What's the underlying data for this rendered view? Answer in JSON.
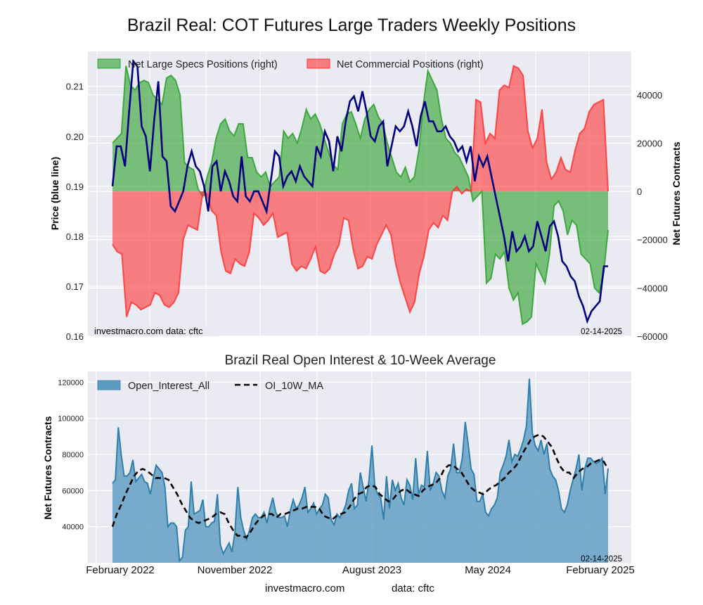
{
  "title": "Brazil Real: COT Futures Large Traders Weekly Positions",
  "subtitle": "Brazil Real Open Interest & 10-Week Average",
  "footer": {
    "site": "investmacro.com",
    "source": "data: cftc"
  },
  "chart_data": [
    {
      "type": "area",
      "name": "positions",
      "title": "Brazil Real: COT Futures Large Traders Weekly Positions",
      "ylabel_left": "Price (blue line)",
      "ylabel_right": "Net Futures Contracts",
      "ylim_left": [
        0.16,
        0.217
      ],
      "ylim_right": [
        -60000,
        58000
      ],
      "yticks_left": [
        "0.21",
        "0.20",
        "0.19",
        "0.18",
        "0.17",
        "0.16"
      ],
      "yticks_right": [
        "40000",
        "20000",
        "0",
        "−20000",
        "−40000",
        "−60000"
      ],
      "grid": true,
      "legend": {
        "position": "top-left",
        "entries": [
          {
            "label": "Net Large Specs Positions (right)",
            "color": "#2ca02c"
          },
          {
            "label": "Net Commercial Positions (right)",
            "color": "#ff3333"
          }
        ]
      },
      "annotation_left": "investmacro.com    data: cftc",
      "annotation_right": "02-14-2025",
      "x_start": "2022-01-11",
      "x_end": "2025-02-14",
      "series": [
        {
          "name": "Net Large Specs Positions",
          "axis": "right",
          "color": "#2ca02c",
          "values": [
            20000,
            22000,
            24000,
            52000,
            44000,
            42000,
            45000,
            46000,
            45000,
            40000,
            38000,
            36000,
            47000,
            48000,
            46000,
            40000,
            12000,
            10000,
            9000,
            1000,
            -2000,
            6000,
            12000,
            22000,
            28000,
            30000,
            25000,
            23000,
            28000,
            28000,
            14000,
            14000,
            8000,
            6000,
            8000,
            2000,
            4000,
            6000,
            25000,
            22000,
            24000,
            20000,
            26000,
            34000,
            30000,
            32000,
            28000,
            22000,
            16000,
            11000,
            9000,
            28000,
            32000,
            33000,
            28000,
            22000,
            30000,
            34000,
            36000,
            31000,
            28000,
            20000,
            14000,
            8000,
            6000,
            10000,
            4000,
            6000,
            17000,
            36000,
            50000,
            46000,
            42000,
            30000,
            22000,
            20000,
            16000,
            14000,
            10000,
            6000,
            -4000,
            -2000,
            0,
            -38000,
            -36000,
            -26000,
            -28000,
            -25000,
            -40000,
            -45000,
            -42000,
            -55000,
            -54000,
            -52000,
            -30000,
            -34000,
            -38000,
            -26000,
            -6000,
            -4000,
            -8000,
            -18000,
            -12000,
            -14000,
            -26000,
            -28000,
            -30000,
            -40000,
            -42000,
            -34000,
            -16000
          ]
        },
        {
          "name": "Net Commercial Positions",
          "axis": "right",
          "color": "#ff3333",
          "values": [
            -22000,
            -25000,
            -26000,
            -52000,
            -46000,
            -47000,
            -49000,
            -48000,
            -47000,
            -42000,
            -43000,
            -47000,
            -48000,
            -46000,
            -42000,
            -20000,
            -14000,
            -15000,
            -16000,
            -2000,
            -1000,
            -8000,
            -10000,
            -25000,
            -33000,
            -34000,
            -28000,
            -30000,
            -31000,
            -25000,
            -9000,
            -11000,
            -14000,
            -12000,
            -9000,
            -19000,
            -18000,
            -17000,
            -30000,
            -33000,
            -31000,
            -32000,
            -28000,
            -23000,
            -33000,
            -34000,
            -32000,
            -26000,
            -22000,
            -11000,
            -12000,
            -24000,
            -32000,
            -31000,
            -27000,
            -28000,
            -22000,
            -18000,
            -14000,
            -18000,
            -30000,
            -38000,
            -44000,
            -50000,
            -46000,
            -34000,
            -27000,
            -16000,
            -13000,
            -15000,
            -10000,
            -12000,
            0,
            2000,
            -1000,
            1000,
            0,
            38000,
            37000,
            20000,
            24000,
            22000,
            42000,
            44000,
            43000,
            52000,
            51000,
            48000,
            25000,
            18000,
            22000,
            34000,
            12000,
            5000,
            8000,
            14000,
            9000,
            8000,
            17000,
            24000,
            26000,
            33000,
            36000,
            37000,
            38000,
            0
          ]
        },
        {
          "name": "Price (blue line)",
          "axis": "left",
          "color": "#000080",
          "values": [
            0.19,
            0.198,
            0.198,
            0.194,
            0.205,
            0.215,
            0.214,
            0.202,
            0.2,
            0.193,
            0.203,
            0.211,
            0.196,
            0.195,
            0.186,
            0.185,
            0.187,
            0.189,
            0.194,
            0.197,
            0.194,
            0.193,
            0.19,
            0.185,
            0.194,
            0.195,
            0.189,
            0.193,
            0.191,
            0.188,
            0.187,
            0.196,
            0.188,
            0.187,
            0.189,
            0.189,
            0.187,
            0.185,
            0.191,
            0.197,
            0.196,
            0.19,
            0.192,
            0.193,
            0.191,
            0.194,
            0.192,
            0.191,
            0.19,
            0.198,
            0.196,
            0.201,
            0.199,
            0.193,
            0.2,
            0.197,
            0.203,
            0.207,
            0.208,
            0.205,
            0.209,
            0.205,
            0.2,
            0.199,
            0.202,
            0.203,
            0.194,
            0.198,
            0.202,
            0.201,
            0.202,
            0.205,
            0.202,
            0.198,
            0.204,
            0.207,
            0.203,
            0.203,
            0.201,
            0.201,
            0.202,
            0.2,
            0.199,
            0.197,
            0.198,
            0.195,
            0.198,
            0.191,
            0.196,
            0.194,
            0.196,
            0.192,
            0.188,
            0.184,
            0.18,
            0.175,
            0.181,
            0.177,
            0.178,
            0.18,
            0.177,
            0.178,
            0.183,
            0.18,
            0.177,
            0.182,
            0.183,
            0.18,
            0.175,
            0.174,
            0.172,
            0.171,
            0.168,
            0.166,
            0.163,
            0.165,
            0.166,
            0.167,
            0.174,
            0.174
          ]
        }
      ]
    },
    {
      "type": "area",
      "name": "open-interest",
      "title": "Brazil Real Open Interest & 10-Week Average",
      "ylabel": "Net Futures Contracts",
      "ylim": [
        20000,
        126000
      ],
      "yticks": [
        "120000",
        "100000",
        "80000",
        "60000",
        "40000"
      ],
      "xticks": [
        "February 2022",
        "November 2022",
        "August 2023",
        "May 2024",
        "February 2025"
      ],
      "grid": true,
      "legend": {
        "position": "top-left",
        "entries": [
          {
            "label": "Open_Interest_All",
            "color": "#5b9bc0"
          },
          {
            "label": "OI_10W_MA",
            "color": "#000000",
            "style": "dashed"
          }
        ]
      },
      "annotation_right": "02-14-2025",
      "series": [
        {
          "name": "Open_Interest_All",
          "color": "#2f7fad",
          "values": [
            64000,
            66000,
            95000,
            80000,
            68000,
            68000,
            70000,
            77000,
            65000,
            67000,
            69000,
            65000,
            64000,
            58000,
            67000,
            74000,
            72000,
            70000,
            62000,
            40000,
            42000,
            42000,
            40000,
            21000,
            23000,
            38000,
            40000,
            65000,
            47000,
            48000,
            49000,
            55000,
            40000,
            40000,
            42000,
            43000,
            58000,
            30000,
            25000,
            28000,
            31000,
            26000,
            37000,
            62000,
            45000,
            38000,
            33000,
            38000,
            45000,
            47000,
            45000,
            45000,
            48000,
            42000,
            50000,
            56000,
            48000,
            45000,
            45000,
            46000,
            40000,
            49000,
            55000,
            50000,
            52000,
            56000,
            62000,
            48000,
            50000,
            53000,
            47000,
            50000,
            52000,
            58000,
            56000,
            44000,
            41000,
            47000,
            45000,
            48000,
            52000,
            60000,
            64000,
            50000,
            52000,
            70000,
            62000,
            54000,
            66000,
            85000,
            62000,
            58000,
            56000,
            44000,
            68000,
            50000,
            66000,
            60000,
            64000,
            56000,
            52000,
            66000,
            63000,
            55000,
            78000,
            58000,
            63000,
            62000,
            82000,
            60000,
            64000,
            70000,
            68000,
            60000,
            56000,
            68000,
            72000,
            86000,
            70000,
            70000,
            78000,
            98000,
            86000,
            72000,
            69000,
            54000,
            54000,
            58000,
            48000,
            46000,
            50000,
            52000,
            56000,
            70000,
            74000,
            79000,
            88000,
            76000,
            80000,
            79000,
            83000,
            88000,
            96000,
            122000,
            92000,
            85000,
            82000,
            88000,
            80000,
            86000,
            72000,
            68000,
            66000,
            60000,
            50000,
            48000,
            52000,
            60000,
            66000,
            72000,
            80000,
            60000,
            72000,
            78000,
            78000,
            76000,
            75000,
            76000,
            78000,
            58000,
            72000
          ]
        },
        {
          "name": "OI_10W_MA",
          "color": "#000000",
          "style": "dashed",
          "values": [
            40000,
            47000,
            52000,
            58000,
            63000,
            68000,
            71000,
            72000,
            71000,
            69000,
            67000,
            67000,
            67000,
            66000,
            62000,
            58000,
            53000,
            49000,
            45000,
            43000,
            42000,
            43000,
            44000,
            45000,
            47000,
            48000,
            47000,
            42000,
            38000,
            35000,
            35000,
            34000,
            37000,
            41000,
            44000,
            46000,
            47000,
            47000,
            45000,
            47000,
            47000,
            48000,
            49000,
            50000,
            50000,
            51000,
            51000,
            51000,
            50000,
            46000,
            45000,
            44000,
            46000,
            47000,
            48000,
            51000,
            55000,
            58000,
            59000,
            62000,
            63000,
            62000,
            58000,
            56000,
            54000,
            55000,
            58000,
            60000,
            61000,
            59000,
            58000,
            57000,
            60000,
            62000,
            63000,
            64000,
            67000,
            72000,
            74000,
            74000,
            72000,
            70000,
            66000,
            62000,
            60000,
            59000,
            58000,
            60000,
            62000,
            63000,
            65000,
            67000,
            70000,
            72000,
            75000,
            80000,
            84000,
            88000,
            90000,
            91000,
            90000,
            87000,
            84000,
            78000,
            73000,
            70000,
            70000,
            67000,
            70000,
            72000,
            73000,
            75000,
            76000,
            77000,
            76000,
            72000
          ]
        }
      ]
    }
  ]
}
